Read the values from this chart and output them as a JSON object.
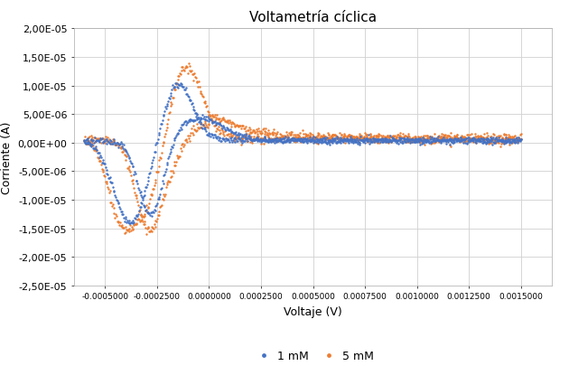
{
  "title": "Voltametría cíclica",
  "xlabel": "Voltaje (V)",
  "ylabel": "Corriente (A)",
  "ylim": [
    -2.5e-05,
    2e-05
  ],
  "xlim": [
    -0.00065,
    0.00165
  ],
  "yticks": [
    -2.5e-05,
    -2e-05,
    -1.5e-05,
    -1e-05,
    -5e-06,
    0.0,
    5e-06,
    1e-05,
    1.5e-05,
    2e-05
  ],
  "ytick_labels": [
    "-2,50E-05",
    "-2,00E-05",
    "-1,50E-05",
    "-1,00E-05",
    "-5,00E-06",
    "0,00E+00",
    "5,00E-06",
    "1,00E-05",
    "1,50E-05",
    "2,00E-05"
  ],
  "xtick_positions": [
    -0.0005,
    -0.00025,
    0.0,
    0.00025,
    0.0005,
    0.00075,
    0.001,
    0.00125,
    0.0015
  ],
  "color_1mM": "#4472C4",
  "color_5mM": "#ED7D31",
  "label_1mM": "1 mM",
  "label_5mM": "5 mM",
  "background_color": "#ffffff",
  "grid_color": "#d0d0d0",
  "title_fontsize": 11,
  "axis_fontsize": 9,
  "tick_fontsize": 8
}
